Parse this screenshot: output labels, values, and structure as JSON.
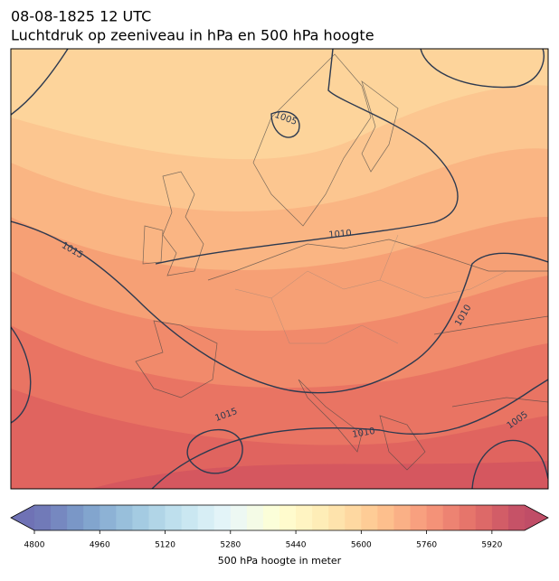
{
  "header": {
    "date": "08-08-1825 12 UTC",
    "title": "Luchtdruk op zeeniveau in hPa en 500 hPa hoogte"
  },
  "map": {
    "isobar_labels": [
      1005,
      1010,
      1015,
      1010,
      1015,
      1010,
      1005
    ]
  },
  "colorbar": {
    "lim": [
      4800,
      6000
    ],
    "step": 40,
    "ticks": [
      4800,
      4960,
      5120,
      5280,
      5440,
      5600,
      5760,
      5920
    ],
    "label": "500 hPa hoogte in meter"
  }
}
